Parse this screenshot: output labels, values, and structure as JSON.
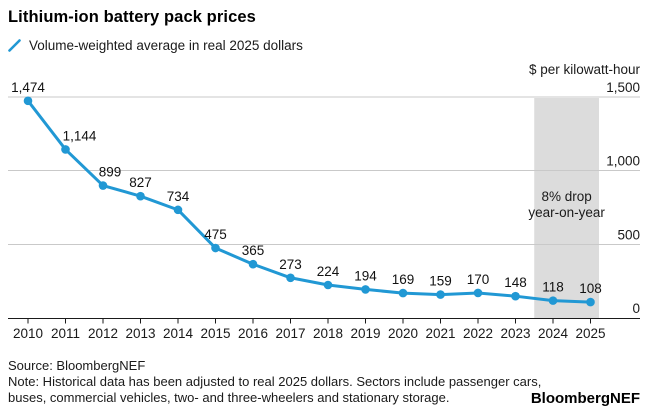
{
  "header": {
    "title": "Lithium-ion battery pack prices",
    "legend_label": "Volume-weighted average in real 2025 dollars"
  },
  "chart_data": {
    "type": "line",
    "title": "Lithium-ion battery pack prices",
    "legend": "Volume-weighted average in real 2025 dollars",
    "unit_label": "$ per kilowatt-hour",
    "categories": [
      "2010",
      "2011",
      "2012",
      "2013",
      "2014",
      "2015",
      "2016",
      "2017",
      "2018",
      "2019",
      "2020",
      "2021",
      "2022",
      "2023",
      "2024",
      "2025"
    ],
    "values": [
      1474,
      1144,
      899,
      827,
      734,
      475,
      365,
      273,
      224,
      194,
      169,
      159,
      170,
      148,
      118,
      108
    ],
    "ylim": [
      0,
      1500
    ],
    "yticks": [
      0,
      500,
      1000,
      1500
    ],
    "grid": "horizontal",
    "legend_position": "top-left",
    "line_color": "#2198d4",
    "band": {
      "color": "#dcdcdc",
      "from_year": "2024",
      "to_year": "2025",
      "label_lines": [
        "8% drop",
        "year-on-year"
      ]
    }
  },
  "footer": {
    "source": "Source: BloombergNEF",
    "note_lines": [
      "Note: Historical data has been adjusted to real 2025 dollars. Sectors include passenger cars,",
      "buses, commercial vehicles, two- and three-wheelers and stationary storage."
    ],
    "brand": "BloombergNEF"
  }
}
